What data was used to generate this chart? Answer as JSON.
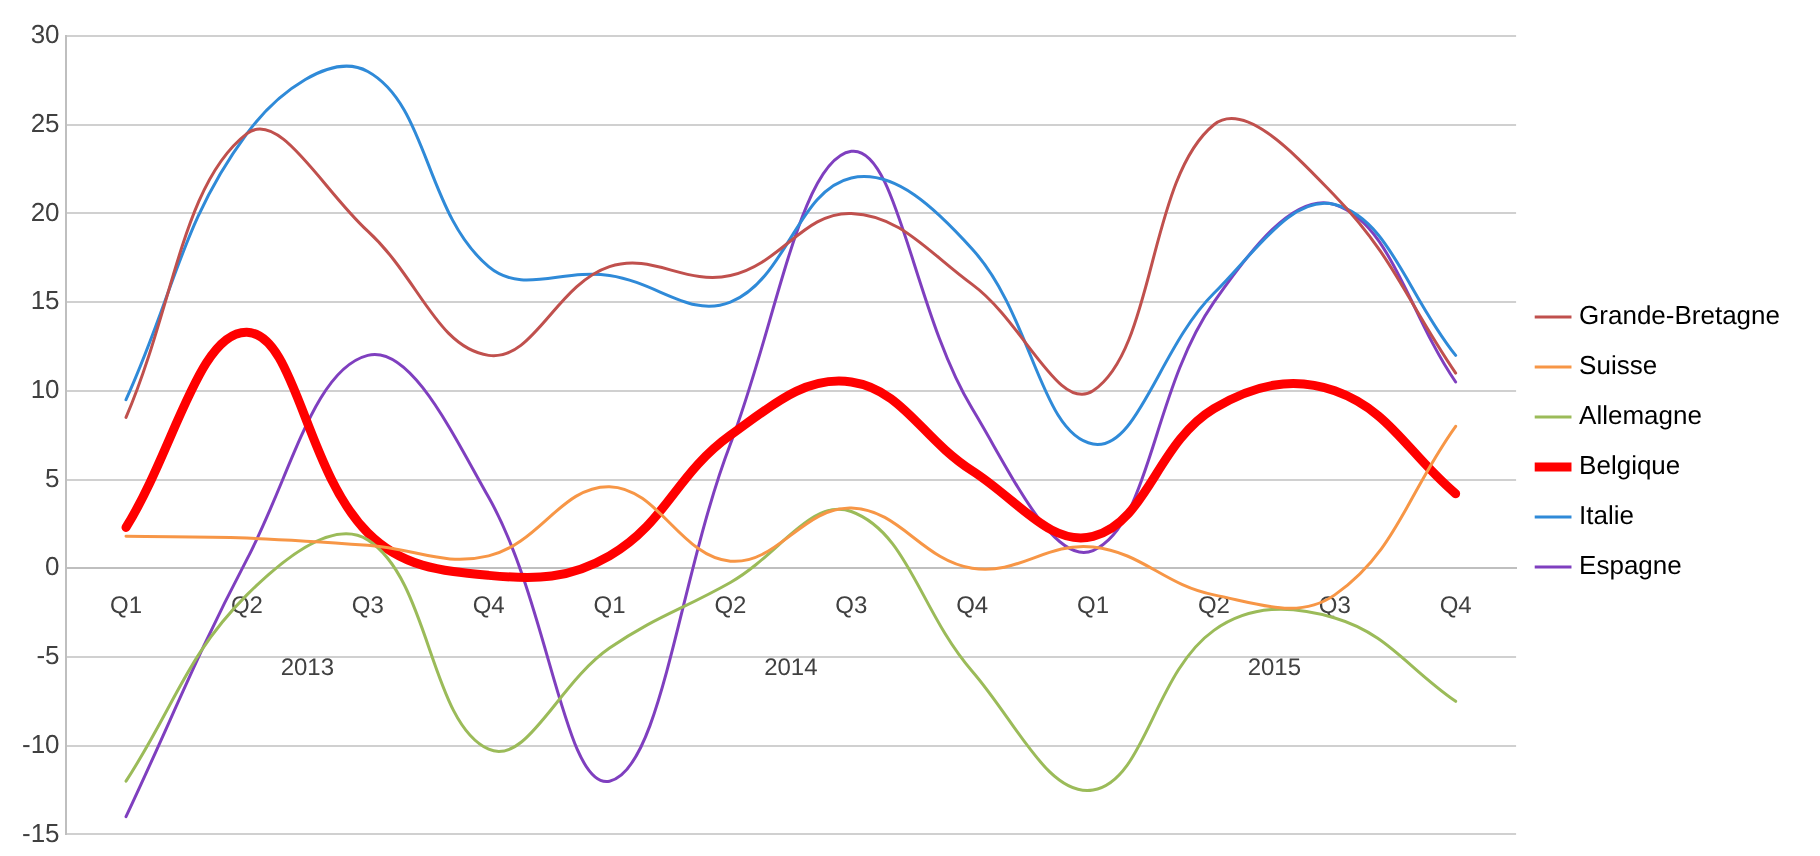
{
  "chart_data": {
    "type": "line",
    "categories": [
      "Q1",
      "Q2",
      "Q3",
      "Q4",
      "Q1",
      "Q2",
      "Q3",
      "Q4",
      "Q1",
      "Q2",
      "Q3",
      "Q4"
    ],
    "annotations": [
      "2013",
      "2014",
      "2015"
    ],
    "series": [
      {
        "name": "Grande-Bretagne",
        "color": "#c0504d",
        "values": [
          8.5,
          24.5,
          19,
          12,
          17,
          16.5,
          20,
          16,
          10,
          25,
          21,
          11
        ]
      },
      {
        "name": "Suisse",
        "color": "#f79646",
        "values": [
          1.8,
          1.7,
          1.3,
          0.7,
          4.6,
          0.4,
          3.4,
          0,
          1.2,
          -1.5,
          -1.5,
          8
        ]
      },
      {
        "name": "Allemagne",
        "color": "#9bbb59",
        "values": [
          -12,
          -1.5,
          1.6,
          -10.2,
          -4.5,
          -0.8,
          3.2,
          -5.8,
          -12.5,
          -3.5,
          -2.8,
          -7.5
        ]
      },
      {
        "name": "Belgique",
        "color": "#ff0000",
        "values": [
          2.3,
          13.3,
          2,
          -0.4,
          0.7,
          7.5,
          10.5,
          5.5,
          1.8,
          9,
          10,
          4.2
        ]
      },
      {
        "name": "Italie",
        "color": "#2f8ad8",
        "values": [
          9.5,
          24.5,
          28,
          17,
          16.5,
          15,
          22,
          18,
          7,
          15.5,
          20.5,
          12
        ]
      },
      {
        "name": "Espagne",
        "color": "#7f3fbf",
        "values": [
          -14,
          0.5,
          12,
          4,
          -12,
          7,
          23.5,
          9,
          1,
          15,
          20.5,
          10.5
        ]
      }
    ],
    "ylim": [
      -15,
      30
    ],
    "yticks": [
      -15,
      -10,
      -5,
      0,
      5,
      10,
      15,
      20,
      25,
      30
    ],
    "grid": "y",
    "legend": "right",
    "marker": "none",
    "line_style": "solid"
  }
}
